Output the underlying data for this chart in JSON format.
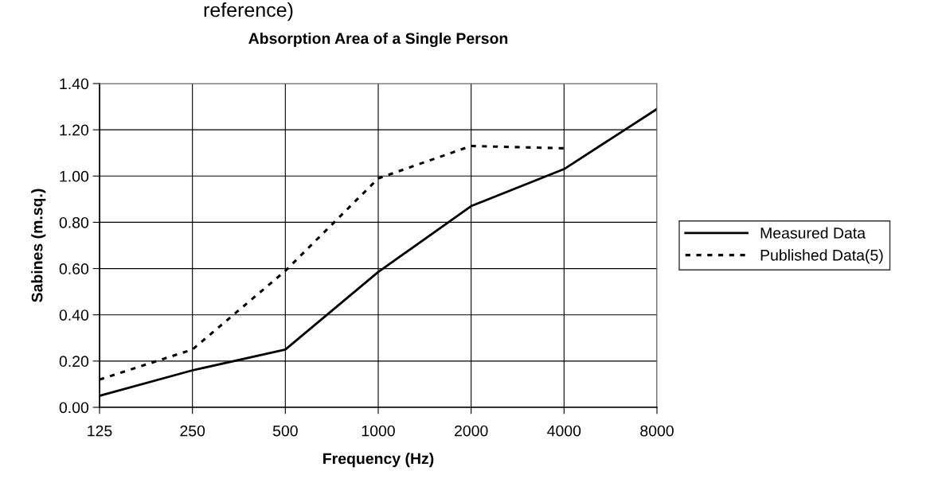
{
  "chart_data": {
    "type": "line",
    "title": "Absorption Area of a Single Person",
    "xlabel": "Frequency (Hz)",
    "ylabel": "Sabines (m.sq.)",
    "annotations": [
      "reference)"
    ],
    "categories": [
      "125",
      "250",
      "500",
      "1000",
      "2000",
      "4000",
      "8000"
    ],
    "series": [
      {
        "name": "Measured Data",
        "color": "#000000",
        "line_style": "solid",
        "values": [
          0.05,
          0.16,
          0.25,
          0.585,
          0.87,
          1.03,
          1.29
        ]
      },
      {
        "name": "Published Data(5)",
        "color": "#000000",
        "line_style": "dotted",
        "values": [
          0.12,
          0.25,
          0.59,
          0.99,
          1.13,
          1.12,
          null
        ]
      }
    ],
    "ylim": [
      0,
      1.4
    ],
    "yticks": [
      {
        "value": 0,
        "label": "0.00"
      },
      {
        "value": 0.2,
        "label": "0.20"
      },
      {
        "value": 0.4,
        "label": "0.40"
      },
      {
        "value": 0.6,
        "label": "0.60"
      },
      {
        "value": 0.8,
        "label": "0.80"
      },
      {
        "value": 1.0,
        "label": "1.00"
      },
      {
        "value": 1.2,
        "label": "1.20"
      },
      {
        "value": 1.4,
        "label": "1.40"
      }
    ],
    "grid": true,
    "legend": "right",
    "marker": "none"
  }
}
